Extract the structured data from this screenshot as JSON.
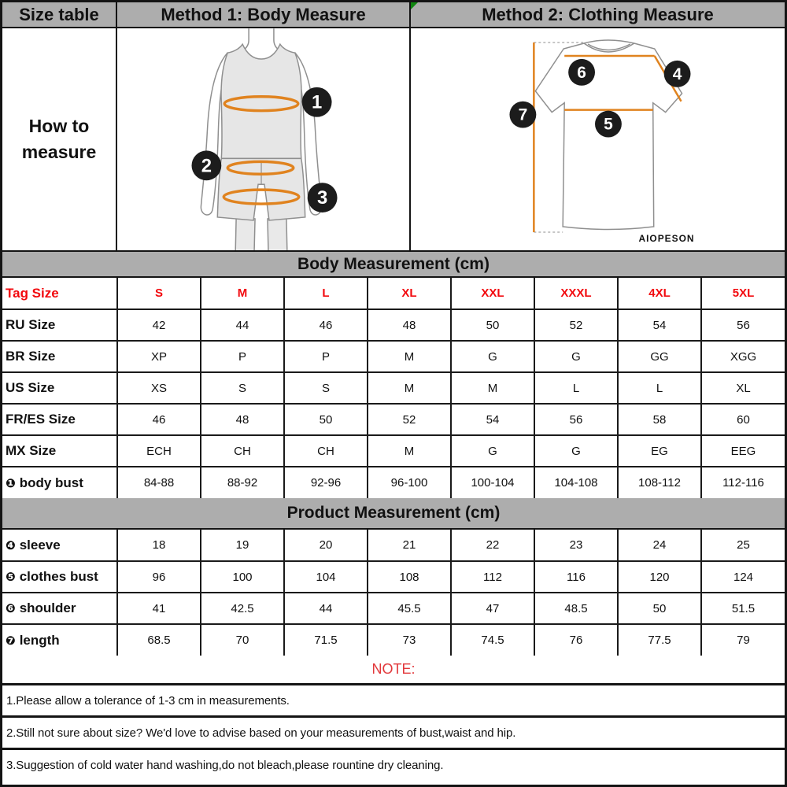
{
  "header": {
    "size_table": "Size table",
    "method1": "Method 1: Body Measure",
    "method2": "Method 2: Clothing Measure",
    "how_to_measure": "How to measure"
  },
  "illustrations": {
    "body": {
      "markers": [
        "1",
        "2",
        "3"
      ]
    },
    "clothing": {
      "markers": {
        "sleeve": "4",
        "bust": "5",
        "shoulder": "6",
        "length": "7"
      },
      "brand": "AIOPESON"
    }
  },
  "body_measurement": {
    "title": "Body Measurement (cm)",
    "rows": [
      {
        "label": "Tag Size",
        "red": true,
        "values": [
          "S",
          "M",
          "L",
          "XL",
          "XXL",
          "XXXL",
          "4XL",
          "5XL"
        ]
      },
      {
        "label": "RU Size",
        "values": [
          "42",
          "44",
          "46",
          "48",
          "50",
          "52",
          "54",
          "56"
        ]
      },
      {
        "label": "BR Size",
        "values": [
          "XP",
          "P",
          "P",
          "M",
          "G",
          "G",
          "GG",
          "XGG"
        ]
      },
      {
        "label": "US Size",
        "values": [
          "XS",
          "S",
          "S",
          "M",
          "M",
          "L",
          "L",
          "XL"
        ]
      },
      {
        "label": "FR/ES Size",
        "values": [
          "46",
          "48",
          "50",
          "52",
          "54",
          "56",
          "58",
          "60"
        ]
      },
      {
        "label": "MX Size",
        "values": [
          "ECH",
          "CH",
          "CH",
          "M",
          "G",
          "G",
          "EG",
          "EEG"
        ]
      },
      {
        "label": "body bust",
        "marker": "❶",
        "values": [
          "84-88",
          "88-92",
          "92-96",
          "96-100",
          "100-104",
          "104-108",
          "108-112",
          "112-116"
        ]
      }
    ]
  },
  "product_measurement": {
    "title": "Product Measurement (cm)",
    "rows": [
      {
        "label": "sleeve",
        "marker": "❹",
        "values": [
          "18",
          "19",
          "20",
          "21",
          "22",
          "23",
          "24",
          "25"
        ]
      },
      {
        "label": "clothes bust",
        "marker": "❺",
        "values": [
          "96",
          "100",
          "104",
          "108",
          "112",
          "116",
          "120",
          "124"
        ]
      },
      {
        "label": "shoulder",
        "marker": "❻",
        "values": [
          "41",
          "42.5",
          "44",
          "45.5",
          "47",
          "48.5",
          "50",
          "51.5"
        ]
      },
      {
        "label": "length",
        "marker": "❼",
        "values": [
          "68.5",
          "70",
          "71.5",
          "73",
          "74.5",
          "76",
          "77.5",
          "79"
        ]
      }
    ]
  },
  "notes": {
    "title": "NOTE:",
    "items": [
      "1.Please allow a tolerance of 1-3 cm in measurements.",
      "2.Still not sure about size? We'd love to advise based on your measurements of bust,waist and hip.",
      "3.Suggestion of cold water hand washing,do not bleach,please rountine dry cleaning."
    ]
  },
  "colors": {
    "header_bg": "#adadad",
    "border": "#141414",
    "red_text": "#f2080d",
    "note_red": "#e2383b",
    "tape_orange": "#e0831f",
    "flag_green": "#0e860e",
    "figure_fill": "#e6e6e6"
  }
}
